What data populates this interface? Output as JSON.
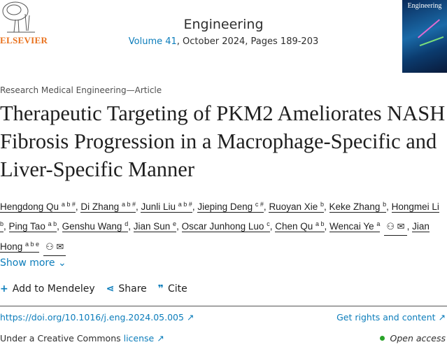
{
  "header": {
    "publisher": "ELSEVIER",
    "journal": "Engineering",
    "volume_link": "Volume 41",
    "issue_rest": ", October 2024, Pages 189-203",
    "cover_title": "Engineering"
  },
  "article": {
    "category": "Research Medical Engineering—Article",
    "title": "Therapeutic Targeting of PKM2 Ameliorates NASH Fibrosis Progression in a Macrophage-Specific and Liver-Specific Manner",
    "authors": [
      {
        "name": "Hengdong Qu",
        "sup": "a b #"
      },
      {
        "name": "Di Zhang",
        "sup": "a b #"
      },
      {
        "name": "Junli Liu",
        "sup": "a b #"
      },
      {
        "name": "Jieping Deng",
        "sup": "c #"
      },
      {
        "name": "Ruoyan Xie",
        "sup": "b"
      },
      {
        "name": "Keke Zhang",
        "sup": "b"
      },
      {
        "name": "Hongmei Li",
        "sup": "b"
      },
      {
        "name": "Ping Tao",
        "sup": "a b"
      },
      {
        "name": "Genshu Wang",
        "sup": "d"
      },
      {
        "name": "Jian Sun",
        "sup": "e"
      },
      {
        "name": "Oscar Junhong Luo",
        "sup": "c"
      },
      {
        "name": "Chen Qu",
        "sup": "a b"
      },
      {
        "name": "Wencai Ye",
        "sup": "a",
        "icons": "person-icon,mail-icon"
      },
      {
        "name": "Jian Hong",
        "sup": "a b e",
        "icons": "person-icon,mail-icon"
      }
    ],
    "show_more": "Show more",
    "actions": {
      "mendeley": "Add to Mendeley",
      "share": "Share",
      "cite": "Cite"
    },
    "doi": "https://doi.org/10.1016/j.eng.2024.05.005 ↗",
    "rights": "Get rights and content ↗",
    "license_prefix": "Under a Creative Commons ",
    "license_link": "license ↗",
    "open_access": "Open access"
  },
  "colors": {
    "link": "#0c7dbb",
    "elsevier": "#e9711c",
    "open_access": "#29a329"
  }
}
